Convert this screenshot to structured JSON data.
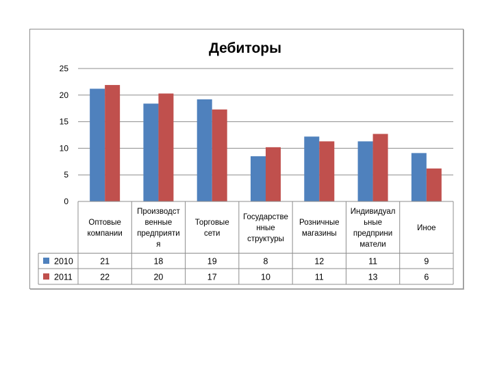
{
  "chart_data": {
    "type": "bar",
    "title": "Дебиторы",
    "categories": [
      [
        "Оптовые",
        "компании"
      ],
      [
        "Производст",
        "венные",
        "предприяти",
        "я"
      ],
      [
        "Торговые",
        "сети"
      ],
      [
        "Государстве",
        "нные",
        "структуры"
      ],
      [
        "Розничные",
        "магазины"
      ],
      [
        "Индивидуал",
        "ьные",
        "предприни",
        "матели"
      ],
      [
        "Иное"
      ]
    ],
    "series": [
      {
        "name": "2010",
        "color": "#4f81bd",
        "values": [
          21.2,
          18.4,
          19.2,
          8.5,
          12.2,
          11.3,
          9.1
        ],
        "table_labels": [
          "21",
          "18",
          "19",
          "8",
          "12",
          "11",
          "9"
        ]
      },
      {
        "name": "2011",
        "color": "#c0504d",
        "values": [
          21.9,
          20.3,
          17.3,
          10.2,
          11.3,
          12.7,
          6.2
        ],
        "table_labels": [
          "22",
          "20",
          "17",
          "10",
          "11",
          "13",
          "6"
        ]
      }
    ],
    "ylim": [
      0,
      25
    ],
    "yticks": [
      "0",
      "5",
      "10",
      "15",
      "20",
      "25"
    ],
    "grid": true,
    "legend": "data table"
  }
}
